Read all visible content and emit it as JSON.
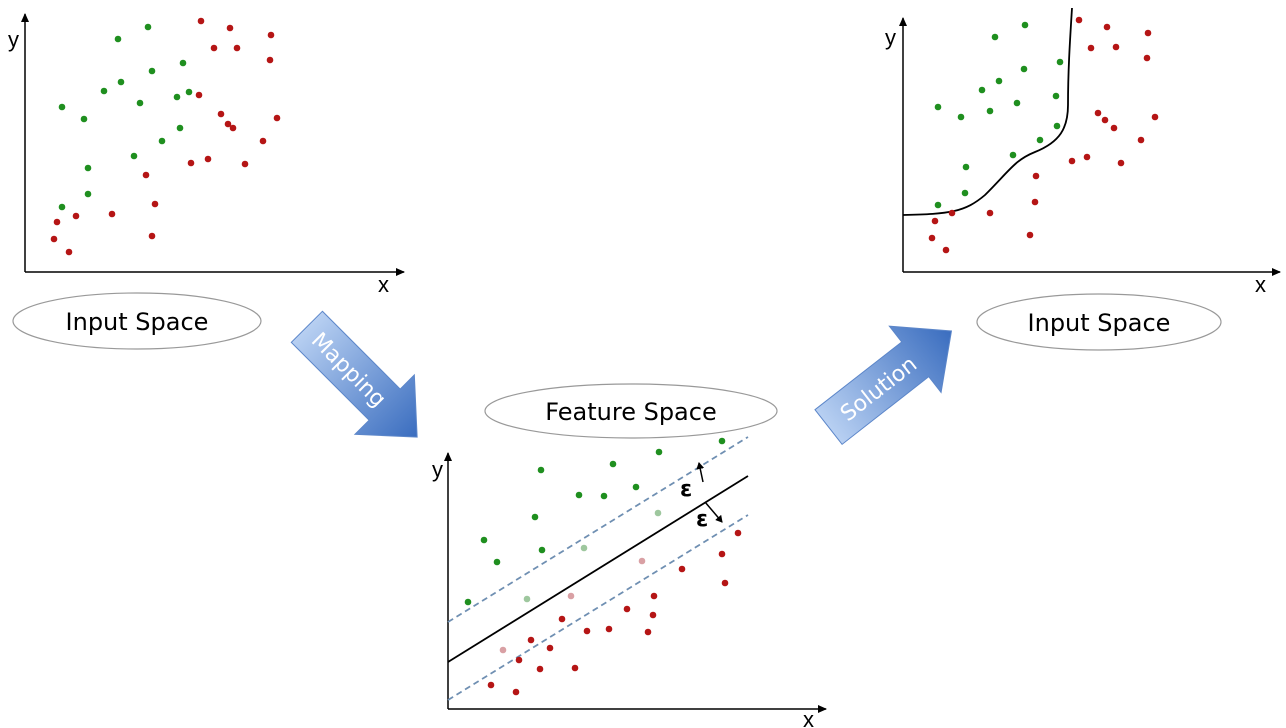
{
  "colors": {
    "class_a": "#1f8f1f",
    "class_b": "#b51515",
    "class_a_faded": "#9ec79e",
    "class_b_faded": "#d9a0a4",
    "arrow_light": "#a9c6ee",
    "arrow_dark": "#3f72c2",
    "margin_line": "#6f8fb2"
  },
  "panel_left": {
    "y_label": "y",
    "x_label": "x",
    "caption": "Input Space"
  },
  "panel_middle": {
    "y_label": "y",
    "x_label": "x",
    "caption": "Feature Space",
    "epsilon_upper": "ε",
    "epsilon_lower": "ε"
  },
  "panel_right": {
    "y_label": "y",
    "x_label": "x",
    "caption": "Input Space"
  },
  "arrows": {
    "mapping": "Mapping",
    "solution": "Solution"
  }
}
